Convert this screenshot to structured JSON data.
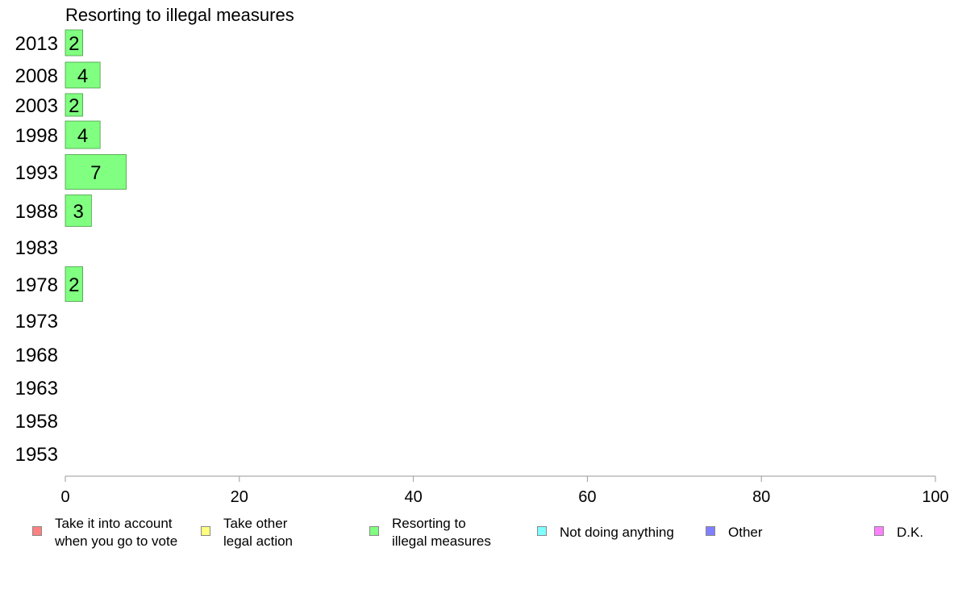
{
  "chart_data": {
    "type": "bar",
    "orientation": "horizontal",
    "title": "Resorting to illegal measures",
    "xlabel": "",
    "ylabel": "",
    "categories": [
      "2013",
      "2008",
      "2003",
      "1998",
      "1993",
      "1988",
      "1983",
      "1978",
      "1973",
      "1968",
      "1963",
      "1958",
      "1953"
    ],
    "series": [
      {
        "name": "Resorting to illegal measures",
        "color": "#80ff80",
        "values": [
          2,
          4,
          2,
          4,
          7,
          3,
          null,
          2,
          null,
          null,
          null,
          null,
          null
        ]
      }
    ],
    "xlim": [
      0,
      100
    ],
    "xticks": [
      "0",
      "20",
      "40",
      "60",
      "80",
      "100"
    ],
    "grid": false,
    "legend_position": "bottom"
  },
  "legend": [
    {
      "label": "Take it into account\nwhen you go to vote",
      "color": "#ff8080"
    },
    {
      "label": "Take other\nlegal action",
      "color": "#ffff80"
    },
    {
      "label": "Resorting to\nillegal measures",
      "color": "#80ff80"
    },
    {
      "label": "Not doing anything",
      "color": "#80ffff"
    },
    {
      "label": "Other",
      "color": "#8080ff"
    },
    {
      "label": "D.K.",
      "color": "#ff80ff"
    }
  ]
}
